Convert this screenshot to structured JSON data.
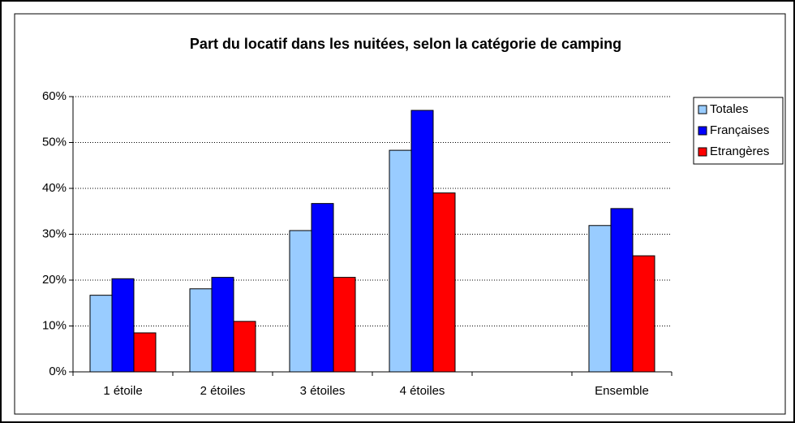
{
  "chart_data": {
    "type": "bar",
    "title": "Part du locatif dans les nuitées, selon la catégorie de camping",
    "categories": [
      "1 étoile",
      "2 étoiles",
      "3 étoiles",
      "4 étoiles",
      null,
      "Ensemble"
    ],
    "series": [
      {
        "name": "Totales",
        "color": "#99ccff",
        "values": [
          16.7,
          18.1,
          30.8,
          48.3,
          null,
          31.9
        ]
      },
      {
        "name": "Françaises",
        "color": "#0000ff",
        "values": [
          20.3,
          20.6,
          36.7,
          57.0,
          null,
          35.6
        ]
      },
      {
        "name": "Etrangères",
        "color": "#ff0000",
        "values": [
          8.5,
          11.0,
          20.6,
          39.0,
          null,
          25.3
        ]
      }
    ],
    "ylim": [
      0,
      60
    ],
    "yticks": [
      {
        "value": 0,
        "label": "0%"
      },
      {
        "value": 10,
        "label": "10%"
      },
      {
        "value": 20,
        "label": "20%"
      },
      {
        "value": 30,
        "label": "30%"
      },
      {
        "value": 40,
        "label": "40%"
      },
      {
        "value": 50,
        "label": "50%"
      },
      {
        "value": 60,
        "label": "60%"
      }
    ],
    "grid": true,
    "legend": "right"
  }
}
